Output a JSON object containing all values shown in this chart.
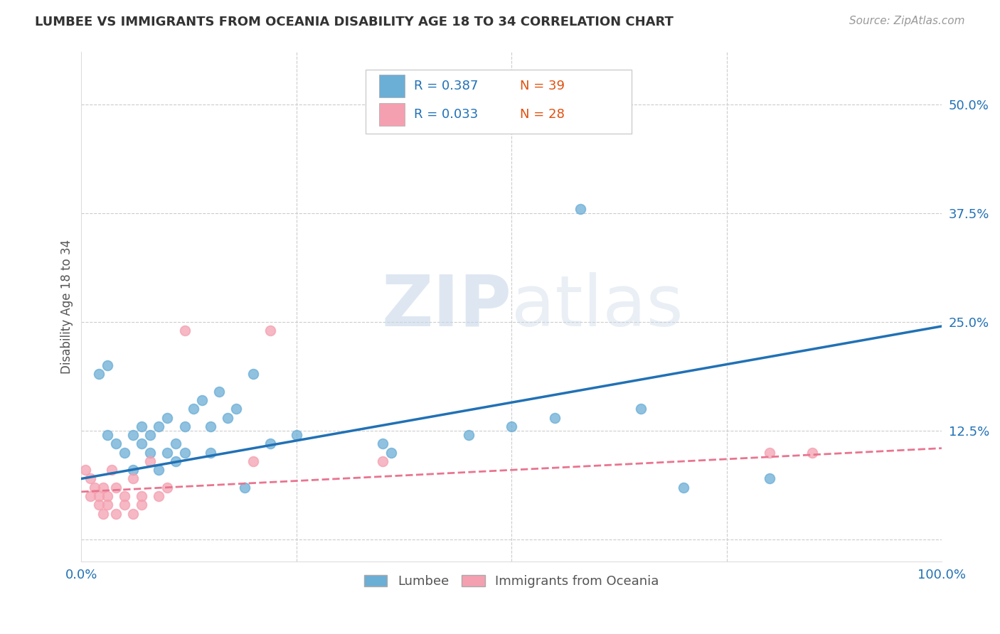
{
  "title": "LUMBEE VS IMMIGRANTS FROM OCEANIA DISABILITY AGE 18 TO 34 CORRELATION CHART",
  "source": "Source: ZipAtlas.com",
  "ylabel": "Disability Age 18 to 34",
  "xlim": [
    0,
    1.0
  ],
  "ylim": [
    -0.025,
    0.56
  ],
  "xticks": [
    0.0,
    0.25,
    0.5,
    0.75,
    1.0
  ],
  "xticklabels": [
    "0.0%",
    "",
    "",
    "",
    "100.0%"
  ],
  "yticks": [
    0.0,
    0.125,
    0.25,
    0.375,
    0.5
  ],
  "yticklabels": [
    "",
    "12.5%",
    "25.0%",
    "37.5%",
    "50.0%"
  ],
  "lumbee_R": "0.387",
  "lumbee_N": "39",
  "oceania_R": "0.033",
  "oceania_N": "28",
  "lumbee_color": "#6baed6",
  "oceania_color": "#f4a0b0",
  "lumbee_line_color": "#2171b5",
  "oceania_line_color": "#e87590",
  "background_color": "#ffffff",
  "grid_color": "#cccccc",
  "lumbee_x": [
    0.02,
    0.03,
    0.03,
    0.04,
    0.05,
    0.06,
    0.06,
    0.07,
    0.07,
    0.08,
    0.08,
    0.09,
    0.09,
    0.1,
    0.1,
    0.11,
    0.11,
    0.12,
    0.12,
    0.13,
    0.14,
    0.15,
    0.15,
    0.16,
    0.17,
    0.18,
    0.19,
    0.2,
    0.22,
    0.25,
    0.35,
    0.36,
    0.45,
    0.5,
    0.55,
    0.58,
    0.65,
    0.7,
    0.8
  ],
  "lumbee_y": [
    0.19,
    0.2,
    0.12,
    0.11,
    0.1,
    0.08,
    0.12,
    0.11,
    0.13,
    0.1,
    0.12,
    0.08,
    0.13,
    0.14,
    0.1,
    0.09,
    0.11,
    0.13,
    0.1,
    0.15,
    0.16,
    0.1,
    0.13,
    0.17,
    0.14,
    0.15,
    0.06,
    0.19,
    0.11,
    0.12,
    0.11,
    0.1,
    0.12,
    0.13,
    0.14,
    0.38,
    0.15,
    0.06,
    0.07
  ],
  "oceania_x": [
    0.005,
    0.01,
    0.01,
    0.015,
    0.02,
    0.02,
    0.025,
    0.025,
    0.03,
    0.03,
    0.035,
    0.04,
    0.04,
    0.05,
    0.05,
    0.06,
    0.06,
    0.07,
    0.07,
    0.08,
    0.09,
    0.1,
    0.12,
    0.2,
    0.22,
    0.35,
    0.8,
    0.85
  ],
  "oceania_y": [
    0.08,
    0.07,
    0.05,
    0.06,
    0.04,
    0.05,
    0.03,
    0.06,
    0.05,
    0.04,
    0.08,
    0.06,
    0.03,
    0.04,
    0.05,
    0.03,
    0.07,
    0.04,
    0.05,
    0.09,
    0.05,
    0.06,
    0.24,
    0.09,
    0.24,
    0.09,
    0.1,
    0.1
  ],
  "lumbee_trend": [
    0.0,
    1.0,
    0.07,
    0.245
  ],
  "oceania_trend": [
    0.0,
    1.0,
    0.055,
    0.105
  ]
}
